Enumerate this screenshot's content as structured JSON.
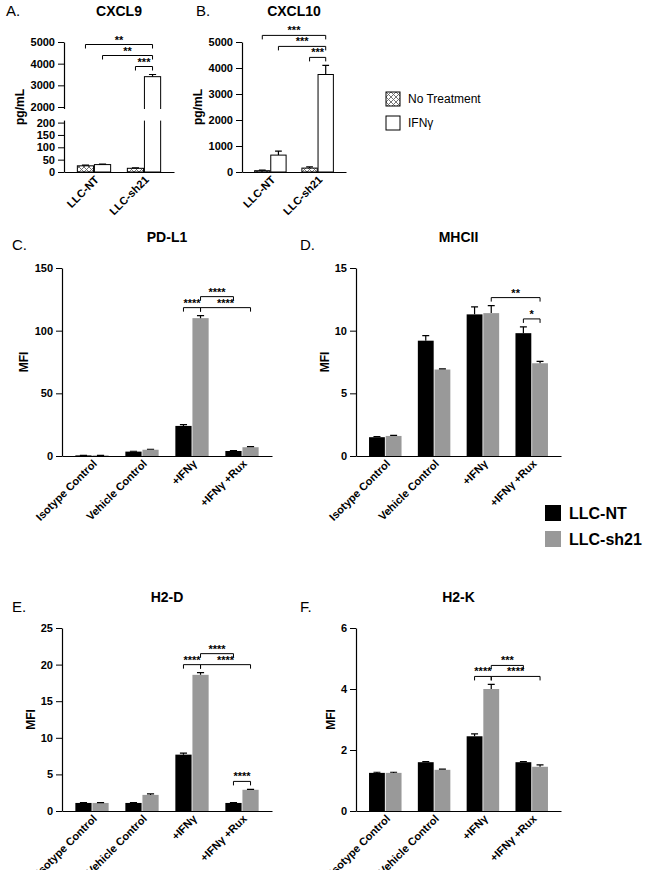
{
  "chart_data": [
    {
      "type": "bar",
      "panel": "A.",
      "title": "CXCL9",
      "ylabel": "pg/mL",
      "categories": [
        "LLC-NT",
        "LLC-sh21"
      ],
      "series": [
        {
          "name": "No Treatment",
          "color": "#666666",
          "marker": "crosshatch",
          "values": [
            25,
            15
          ],
          "errors": [
            3,
            2
          ]
        },
        {
          "name": "IFNγ",
          "color": "#ffffff",
          "values": [
            30,
            3400
          ],
          "errors": [
            2,
            100
          ]
        }
      ],
      "ylim": [
        0,
        5000
      ],
      "ybreak": [
        200,
        2000
      ],
      "yticks": [
        0,
        50,
        100,
        150,
        200,
        2000,
        3000,
        4000,
        5000
      ],
      "comparisons": [
        {
          "label": "***",
          "from": [
            "LLC-sh21",
            "No Treatment"
          ],
          "to": [
            "LLC-sh21",
            "IFNγ"
          ]
        },
        {
          "label": "**",
          "from": [
            "LLC-NT",
            "IFNγ"
          ],
          "to": [
            "LLC-sh21",
            "IFNγ"
          ]
        },
        {
          "label": "**",
          "from": [
            "LLC-NT",
            "No Treatment"
          ],
          "to": [
            "LLC-sh21",
            "IFNγ"
          ]
        }
      ]
    },
    {
      "type": "bar",
      "panel": "B.",
      "title": "CXCL10",
      "legend": "right",
      "categories": [
        "LLC-NT",
        "LLC-sh21"
      ],
      "series": [
        {
          "name": "No Treatment",
          "color": "#666666",
          "marker": "crosshatch",
          "values": [
            50,
            150
          ],
          "errors": [
            20,
            50
          ]
        },
        {
          "name": "IFNγ",
          "color": "#ffffff",
          "values": [
            650,
            3750
          ],
          "errors": [
            150,
            350
          ]
        }
      ],
      "ylim": [
        0,
        5000
      ],
      "yticks": [
        0,
        1000,
        2000,
        3000,
        4000,
        5000
      ],
      "ylabel": "pg/mL",
      "comparisons": [
        {
          "label": "***",
          "from": [
            "LLC-sh21",
            "No Treatment"
          ],
          "to": [
            "LLC-sh21",
            "IFNγ"
          ]
        },
        {
          "label": "***",
          "from": [
            "LLC-NT",
            "IFNγ"
          ],
          "to": [
            "LLC-sh21",
            "IFNγ"
          ]
        },
        {
          "label": "***",
          "from": [
            "LLC-NT",
            "No Treatment"
          ],
          "to": [
            "LLC-sh21",
            "IFNγ"
          ]
        }
      ]
    },
    {
      "type": "bar",
      "panel": "C.",
      "title": "PD-L1",
      "ylabel": "MFI",
      "categories": [
        "Isotype Control",
        "Vehicle Control",
        "+IFNγ",
        "+IFNγ +Rux"
      ],
      "series": [
        {
          "name": "LLC-NT",
          "color": "#000000",
          "values": [
            0.5,
            3.5,
            24,
            4
          ],
          "errors": [
            0.05,
            0.3,
            1,
            0.3
          ]
        },
        {
          "name": "LLC-sh21",
          "color": "#999999",
          "values": [
            0.5,
            5,
            110,
            7
          ],
          "errors": [
            0.05,
            0.4,
            2,
            0.5
          ]
        }
      ],
      "ylim": [
        0,
        150
      ],
      "yticks": [
        0,
        50,
        100,
        150
      ],
      "comparisons": [
        {
          "label": "****",
          "from": [
            "+IFNγ",
            "LLC-NT"
          ],
          "to": [
            "+IFNγ",
            "LLC-sh21"
          ]
        },
        {
          "label": "****",
          "from": [
            "+IFNγ",
            "LLC-sh21"
          ],
          "to": [
            "+IFNγ +Rux",
            "LLC-sh21"
          ]
        },
        {
          "label": "****",
          "from": [
            "+IFNγ",
            "LLC-sh21"
          ],
          "to": [
            "+IFNγ +Rux",
            "LLC-NT"
          ]
        }
      ]
    },
    {
      "type": "bar",
      "panel": "D.",
      "title": "MHCII",
      "ylabel": "MFI",
      "legend": "right",
      "categories": [
        "Isotype Control",
        "Vehicle Control",
        "+IFNγ",
        "+IFNγ +Rux"
      ],
      "series": [
        {
          "name": "LLC-NT",
          "color": "#000000",
          "values": [
            1.5,
            9.2,
            11.3,
            9.8
          ],
          "errors": [
            0.05,
            0.4,
            0.6,
            0.5
          ]
        },
        {
          "name": "LLC-sh21",
          "color": "#999999",
          "values": [
            1.6,
            6.9,
            11.4,
            7.4
          ],
          "errors": [
            0.05,
            0.05,
            0.6,
            0.15
          ]
        }
      ],
      "ylim": [
        0,
        15
      ],
      "yticks": [
        0,
        5,
        10,
        15
      ],
      "comparisons": [
        {
          "label": "*",
          "from": [
            "+IFNγ +Rux",
            "LLC-NT"
          ],
          "to": [
            "+IFNγ +Rux",
            "LLC-sh21"
          ]
        },
        {
          "label": "**",
          "from": [
            "+IFNγ",
            "LLC-sh21"
          ],
          "to": [
            "+IFNγ +Rux",
            "LLC-sh21"
          ]
        }
      ]
    },
    {
      "type": "bar",
      "panel": "E.",
      "title": "H2-D",
      "ylabel": "MFI",
      "categories": [
        "Isotype Control",
        "Vehicle Control",
        "+IFNγ",
        "+IFNγ +Rux"
      ],
      "series": [
        {
          "name": "LLC-NT",
          "color": "#000000",
          "values": [
            1.1,
            1.1,
            7.7,
            1.1
          ],
          "errors": [
            0.05,
            0.05,
            0.2,
            0.05
          ]
        },
        {
          "name": "LLC-sh21",
          "color": "#999999",
          "values": [
            1.1,
            2.2,
            18.6,
            2.9
          ],
          "errors": [
            0.05,
            0.15,
            0.3,
            0.05
          ]
        }
      ],
      "ylim": [
        0,
        25
      ],
      "yticks": [
        0,
        5,
        10,
        15,
        20,
        25
      ],
      "comparisons": [
        {
          "label": "****",
          "from": [
            "+IFNγ +Rux",
            "LLC-NT"
          ],
          "to": [
            "+IFNγ +Rux",
            "LLC-sh21"
          ]
        },
        {
          "label": "****",
          "from": [
            "+IFNγ",
            "LLC-NT"
          ],
          "to": [
            "+IFNγ",
            "LLC-sh21"
          ]
        },
        {
          "label": "****",
          "from": [
            "+IFNγ",
            "LLC-sh21"
          ],
          "to": [
            "+IFNγ +Rux",
            "LLC-sh21"
          ]
        },
        {
          "label": "****",
          "from": [
            "+IFNγ",
            "LLC-sh21"
          ],
          "to": [
            "+IFNγ +Rux",
            "LLC-NT"
          ]
        }
      ]
    },
    {
      "type": "bar",
      "panel": "F.",
      "title": "H2-K",
      "ylabel": "MFI",
      "categories": [
        "Isotype Control",
        "Vehicle Control",
        "+IFNγ",
        "+IFNγ +Rux"
      ],
      "series": [
        {
          "name": "LLC-NT",
          "color": "#000000",
          "values": [
            1.25,
            1.6,
            2.45,
            1.6
          ],
          "errors": [
            0.02,
            0.02,
            0.08,
            0.02
          ]
        },
        {
          "name": "LLC-sh21",
          "color": "#999999",
          "values": [
            1.25,
            1.35,
            4.0,
            1.45
          ],
          "errors": [
            0.02,
            0.02,
            0.15,
            0.06
          ]
        }
      ],
      "ylim": [
        0,
        6
      ],
      "yticks": [
        0,
        2,
        4,
        6
      ],
      "comparisons": [
        {
          "label": "****",
          "from": [
            "+IFNγ",
            "LLC-NT"
          ],
          "to": [
            "+IFNγ",
            "LLC-sh21"
          ]
        },
        {
          "label": "****",
          "from": [
            "+IFNγ",
            "LLC-sh21"
          ],
          "to": [
            "+IFNγ +Rux",
            "LLC-sh21"
          ]
        },
        {
          "label": "***",
          "from": [
            "+IFNγ",
            "LLC-sh21"
          ],
          "to": [
            "+IFNγ +Rux",
            "LLC-NT"
          ]
        }
      ]
    }
  ]
}
